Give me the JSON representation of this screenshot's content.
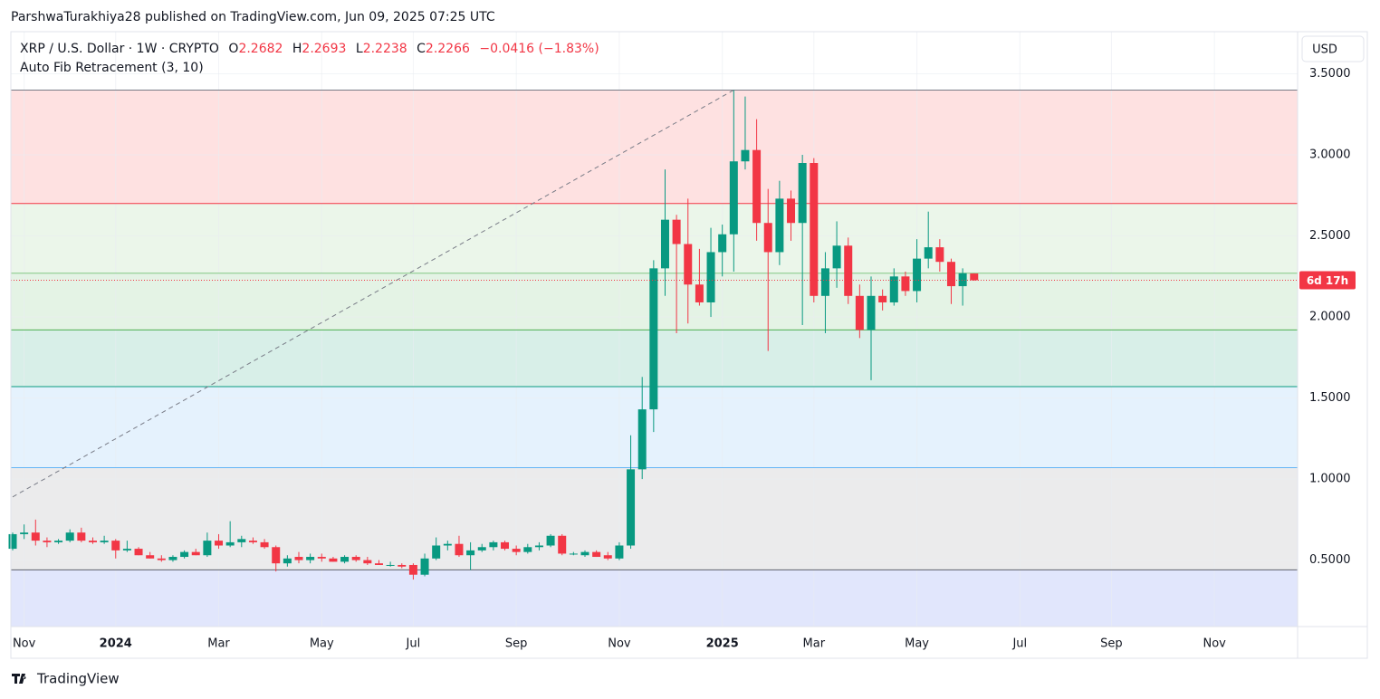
{
  "published": "ParshwaTurakhiya28 published on TradingView.com, Jun 09, 2025 07:25 UTC",
  "brand": "TradingView",
  "chart_data": {
    "type": "candlestick",
    "symbol": "XRP / U.S. Dollar · 1W · CRYPTO",
    "ohlc_labels": [
      "O",
      "H",
      "L",
      "C"
    ],
    "change": "−0.0416 (−1.83%)",
    "indicator": "Auto Fib Retracement (3, 10)",
    "currency": "USD",
    "countdown": "6d 17h",
    "up_color": "#089981",
    "down_color": "#f23645",
    "grid": true,
    "ylim": [
      0.09,
      3.76
    ],
    "yticks": [
      {
        "value": 0.5,
        "label": "0.5000"
      },
      {
        "value": 1,
        "label": "1.0000"
      },
      {
        "value": 1.5,
        "label": "1.5000"
      },
      {
        "value": 2,
        "label": "2.0000"
      },
      {
        "value": 2.5,
        "label": "2.5000"
      },
      {
        "value": 3,
        "label": "3.0000"
      },
      {
        "value": 3.5,
        "label": "3.5000"
      }
    ],
    "xticks": [
      {
        "value": "2023-11",
        "label": "Nov"
      },
      {
        "value": "2024-01",
        "label": "2024"
      },
      {
        "value": "2024-03",
        "label": "Mar"
      },
      {
        "value": "2024-05",
        "label": "May"
      },
      {
        "value": "2024-07",
        "label": "Jul"
      },
      {
        "value": "2024-09",
        "label": "Sep"
      },
      {
        "value": "2024-11",
        "label": "Nov"
      },
      {
        "value": "2025-01",
        "label": "2025"
      },
      {
        "value": "2025-03",
        "label": "Mar"
      },
      {
        "value": "2025-05",
        "label": "May"
      },
      {
        "value": "2025-07",
        "label": "Jul"
      },
      {
        "value": "2025-09",
        "label": "Sep"
      },
      {
        "value": "2025-11",
        "label": "Nov"
      }
    ],
    "fib_levels": [
      {
        "value": 3.4,
        "color": "#787b86"
      },
      {
        "value": 2.7,
        "color": "#f23645"
      },
      {
        "value": 2.27,
        "color": "#81c784"
      },
      {
        "value": 1.92,
        "color": "#4caf50"
      },
      {
        "value": 1.57,
        "color": "#089981"
      },
      {
        "value": 1.07,
        "color": "#64b5f6"
      },
      {
        "value": 0.44,
        "color": "#5d606b"
      }
    ],
    "fib_zone_colors": [
      "#fee1e1",
      "#ebf6ea",
      "#e4f3e5",
      "#d8efe8",
      "#e5f2fd",
      "#ebebec",
      "#e1e6fc"
    ],
    "trend_line": [
      0.89,
      3.4
    ],
    "candles": [
      {
        "open": 0.57,
        "high": 0.67,
        "low": 0.56,
        "close": 0.66
      },
      {
        "open": 0.66,
        "high": 0.72,
        "low": 0.63,
        "close": 0.67
      },
      {
        "open": 0.67,
        "high": 0.75,
        "low": 0.59,
        "close": 0.62
      },
      {
        "open": 0.62,
        "high": 0.64,
        "low": 0.58,
        "close": 0.61
      },
      {
        "open": 0.61,
        "high": 0.63,
        "low": 0.6,
        "close": 0.62
      },
      {
        "open": 0.62,
        "high": 0.69,
        "low": 0.61,
        "close": 0.67
      },
      {
        "open": 0.67,
        "high": 0.7,
        "low": 0.61,
        "close": 0.62
      },
      {
        "open": 0.62,
        "high": 0.64,
        "low": 0.6,
        "close": 0.61
      },
      {
        "open": 0.61,
        "high": 0.65,
        "low": 0.6,
        "close": 0.62
      },
      {
        "open": 0.62,
        "high": 0.63,
        "low": 0.51,
        "close": 0.56
      },
      {
        "open": 0.56,
        "high": 0.62,
        "low": 0.55,
        "close": 0.57
      },
      {
        "open": 0.57,
        "high": 0.58,
        "low": 0.53,
        "close": 0.53
      },
      {
        "open": 0.53,
        "high": 0.55,
        "low": 0.51,
        "close": 0.51
      },
      {
        "open": 0.51,
        "high": 0.53,
        "low": 0.49,
        "close": 0.5
      },
      {
        "open": 0.5,
        "high": 0.53,
        "low": 0.49,
        "close": 0.52
      },
      {
        "open": 0.52,
        "high": 0.56,
        "low": 0.51,
        "close": 0.55
      },
      {
        "open": 0.55,
        "high": 0.57,
        "low": 0.53,
        "close": 0.53
      },
      {
        "open": 0.53,
        "high": 0.67,
        "low": 0.52,
        "close": 0.62
      },
      {
        "open": 0.62,
        "high": 0.66,
        "low": 0.57,
        "close": 0.59
      },
      {
        "open": 0.59,
        "high": 0.74,
        "low": 0.58,
        "close": 0.61
      },
      {
        "open": 0.61,
        "high": 0.65,
        "low": 0.58,
        "close": 0.63
      },
      {
        "open": 0.62,
        "high": 0.64,
        "low": 0.6,
        "close": 0.61
      },
      {
        "open": 0.61,
        "high": 0.63,
        "low": 0.57,
        "close": 0.58
      },
      {
        "open": 0.58,
        "high": 0.59,
        "low": 0.43,
        "close": 0.48
      },
      {
        "open": 0.48,
        "high": 0.53,
        "low": 0.46,
        "close": 0.51
      },
      {
        "open": 0.52,
        "high": 0.55,
        "low": 0.48,
        "close": 0.5
      },
      {
        "open": 0.5,
        "high": 0.54,
        "low": 0.48,
        "close": 0.52
      },
      {
        "open": 0.52,
        "high": 0.54,
        "low": 0.49,
        "close": 0.51
      },
      {
        "open": 0.51,
        "high": 0.52,
        "low": 0.49,
        "close": 0.49
      },
      {
        "open": 0.49,
        "high": 0.53,
        "low": 0.48,
        "close": 0.52
      },
      {
        "open": 0.52,
        "high": 0.53,
        "low": 0.49,
        "close": 0.5
      },
      {
        "open": 0.5,
        "high": 0.52,
        "low": 0.47,
        "close": 0.48
      },
      {
        "open": 0.48,
        "high": 0.5,
        "low": 0.47,
        "close": 0.47
      },
      {
        "open": 0.47,
        "high": 0.49,
        "low": 0.46,
        "close": 0.47
      },
      {
        "open": 0.47,
        "high": 0.48,
        "low": 0.45,
        "close": 0.46
      },
      {
        "open": 0.47,
        "high": 0.48,
        "low": 0.38,
        "close": 0.41
      },
      {
        "open": 0.41,
        "high": 0.54,
        "low": 0.4,
        "close": 0.51
      },
      {
        "open": 0.51,
        "high": 0.64,
        "low": 0.5,
        "close": 0.59
      },
      {
        "open": 0.59,
        "high": 0.62,
        "low": 0.56,
        "close": 0.6
      },
      {
        "open": 0.6,
        "high": 0.65,
        "low": 0.52,
        "close": 0.53
      },
      {
        "open": 0.53,
        "high": 0.61,
        "low": 0.44,
        "close": 0.56
      },
      {
        "open": 0.56,
        "high": 0.6,
        "low": 0.55,
        "close": 0.58
      },
      {
        "open": 0.58,
        "high": 0.62,
        "low": 0.56,
        "close": 0.61
      },
      {
        "open": 0.61,
        "high": 0.62,
        "low": 0.56,
        "close": 0.57
      },
      {
        "open": 0.57,
        "high": 0.59,
        "low": 0.53,
        "close": 0.55
      },
      {
        "open": 0.55,
        "high": 0.6,
        "low": 0.54,
        "close": 0.58
      },
      {
        "open": 0.58,
        "high": 0.61,
        "low": 0.56,
        "close": 0.59
      },
      {
        "open": 0.59,
        "high": 0.66,
        "low": 0.58,
        "close": 0.65
      },
      {
        "open": 0.65,
        "high": 0.66,
        "low": 0.53,
        "close": 0.54
      },
      {
        "open": 0.54,
        "high": 0.55,
        "low": 0.53,
        "close": 0.54
      },
      {
        "open": 0.53,
        "high": 0.56,
        "low": 0.52,
        "close": 0.55
      },
      {
        "open": 0.55,
        "high": 0.56,
        "low": 0.52,
        "close": 0.52
      },
      {
        "open": 0.53,
        "high": 0.55,
        "low": 0.5,
        "close": 0.51
      },
      {
        "open": 0.51,
        "high": 0.61,
        "low": 0.5,
        "close": 0.59
      },
      {
        "open": 0.59,
        "high": 1.27,
        "low": 0.57,
        "close": 1.06
      },
      {
        "open": 1.06,
        "high": 1.63,
        "low": 1.0,
        "close": 1.43
      },
      {
        "open": 1.43,
        "high": 2.35,
        "low": 1.29,
        "close": 2.3
      },
      {
        "open": 2.3,
        "high": 2.91,
        "low": 2.13,
        "close": 2.6
      },
      {
        "open": 2.6,
        "high": 2.63,
        "low": 1.9,
        "close": 2.45
      },
      {
        "open": 2.45,
        "high": 2.73,
        "low": 1.96,
        "close": 2.2
      },
      {
        "open": 2.2,
        "high": 2.42,
        "low": 2.07,
        "close": 2.09
      },
      {
        "open": 2.09,
        "high": 2.55,
        "low": 2.0,
        "close": 2.4
      },
      {
        "open": 2.4,
        "high": 2.57,
        "low": 2.25,
        "close": 2.51
      },
      {
        "open": 2.51,
        "high": 3.4,
        "low": 2.28,
        "close": 2.96
      },
      {
        "open": 2.96,
        "high": 3.36,
        "low": 2.91,
        "close": 3.03
      },
      {
        "open": 3.03,
        "high": 3.22,
        "low": 2.47,
        "close": 2.58
      },
      {
        "open": 2.58,
        "high": 2.79,
        "low": 1.79,
        "close": 2.4
      },
      {
        "open": 2.4,
        "high": 2.84,
        "low": 2.32,
        "close": 2.73
      },
      {
        "open": 2.73,
        "high": 2.78,
        "low": 2.47,
        "close": 2.58
      },
      {
        "open": 2.58,
        "high": 3.0,
        "low": 1.95,
        "close": 2.95
      },
      {
        "open": 2.95,
        "high": 2.98,
        "low": 2.09,
        "close": 2.13
      },
      {
        "open": 2.13,
        "high": 2.4,
        "low": 1.9,
        "close": 2.3
      },
      {
        "open": 2.3,
        "high": 2.59,
        "low": 2.18,
        "close": 2.44
      },
      {
        "open": 2.44,
        "high": 2.49,
        "low": 2.08,
        "close": 2.13
      },
      {
        "open": 2.13,
        "high": 2.2,
        "low": 1.87,
        "close": 1.92
      },
      {
        "open": 1.92,
        "high": 2.25,
        "low": 1.61,
        "close": 2.13
      },
      {
        "open": 2.13,
        "high": 2.17,
        "low": 2.04,
        "close": 2.09
      },
      {
        "open": 2.09,
        "high": 2.3,
        "low": 2.07,
        "close": 2.25
      },
      {
        "open": 2.25,
        "high": 2.28,
        "low": 2.13,
        "close": 2.16
      },
      {
        "open": 2.16,
        "high": 2.48,
        "low": 2.09,
        "close": 2.36
      },
      {
        "open": 2.36,
        "high": 2.65,
        "low": 2.3,
        "close": 2.43
      },
      {
        "open": 2.43,
        "high": 2.48,
        "low": 2.28,
        "close": 2.34
      },
      {
        "open": 2.34,
        "high": 2.36,
        "low": 2.08,
        "close": 2.19
      },
      {
        "open": 2.19,
        "high": 2.3,
        "low": 2.07,
        "close": 2.27
      },
      {
        "open": 2.2682,
        "high": 2.2693,
        "low": 2.2238,
        "close": 2.2266
      }
    ]
  }
}
